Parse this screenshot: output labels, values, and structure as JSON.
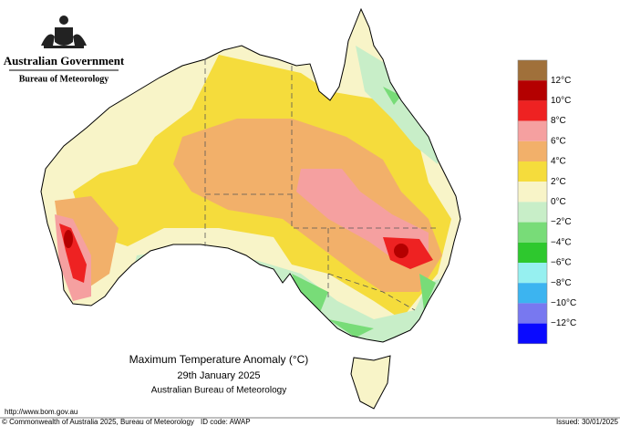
{
  "header": {
    "government": "Australian Government",
    "agency": "Bureau of Meteorology"
  },
  "title": {
    "line1": "Maximum Temperature Anomaly (°C)",
    "line2": "29th January 2025",
    "line3": "Australian Bureau of Meteorology"
  },
  "legend": {
    "colors": [
      "#a0703a",
      "#b40000",
      "#ee2222",
      "#f5a0a0",
      "#f2b06a",
      "#f5dc3c",
      "#f8f4c8",
      "#c8eec8",
      "#78dc78",
      "#2ec82e",
      "#96f0f0",
      "#3cb4f0",
      "#7878f0",
      "#0a0aff"
    ],
    "labels": [
      "12°C",
      "10°C",
      "8°C",
      "6°C",
      "4°C",
      "2°C",
      "0°C",
      "−2°C",
      "−4°C",
      "−6°C",
      "−8°C",
      "−10°C",
      "−12°C"
    ]
  },
  "footer": {
    "url": "http://www.bom.gov.au",
    "copyright": "© Commonwealth of Australia 2025, Bureau of Meteorology",
    "id_code": "ID code: AWAP",
    "issued": "Issued: 30/01/2025"
  }
}
